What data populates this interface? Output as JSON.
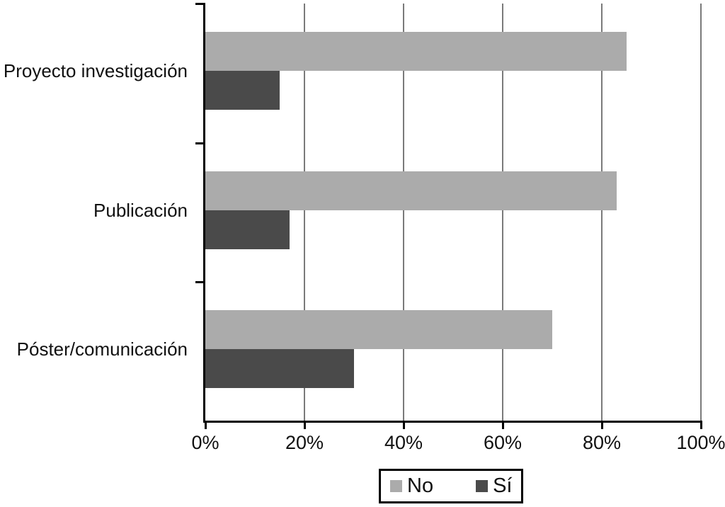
{
  "chart_data": {
    "type": "bar",
    "orientation": "horizontal",
    "title": "",
    "xlabel": "",
    "ylabel": "",
    "categories": [
      "Proyecto investigación",
      "Publicación",
      "Póster/comunicación"
    ],
    "series": [
      {
        "name": "No",
        "color": "#ababab",
        "values": [
          85,
          83,
          70
        ]
      },
      {
        "name": "Sí",
        "color": "#4a4a4a",
        "values": [
          15,
          17,
          30
        ]
      }
    ],
    "xlim": [
      0,
      100
    ],
    "x_tick_values": [
      0,
      20,
      40,
      60,
      80,
      100
    ],
    "x_tick_labels": [
      "0%",
      "20%",
      "40%",
      "60%",
      "80%",
      "100%"
    ],
    "unit": "percent",
    "grid": true,
    "gridline_color": "#7a7a7a",
    "axis_color": "#000000",
    "background_color": "#ffffff",
    "legend_position": "bottom-center"
  }
}
